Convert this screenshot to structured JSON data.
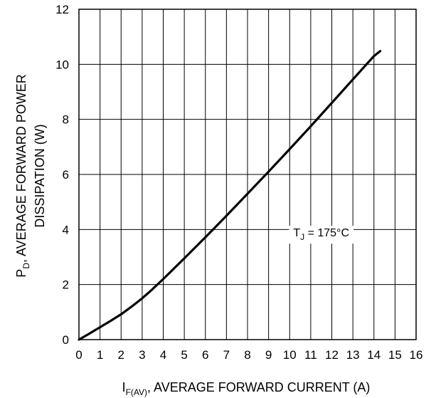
{
  "chart_data": {
    "type": "line",
    "xlabel": {
      "base": "I",
      "sub": "F(AV)",
      "rest": ", AVERAGE FORWARD CURRENT (A)"
    },
    "ylabel": {
      "line1_base": "P",
      "line1_sub": "D",
      "line1_rest": ", AVERAGE FORWARD POWER",
      "line2": "DISSIPATION (W)"
    },
    "xlim": [
      0,
      16
    ],
    "ylim": [
      0,
      12
    ],
    "x_ticks": [
      0,
      1,
      2,
      3,
      4,
      5,
      6,
      7,
      8,
      9,
      10,
      11,
      12,
      13,
      14,
      15,
      16
    ],
    "y_ticks": [
      0,
      2,
      4,
      6,
      8,
      10,
      12
    ],
    "grid": true,
    "series": [
      {
        "x": [
          0,
          0.5,
          1,
          1.5,
          2,
          2.5,
          3,
          3.5,
          4,
          5,
          6,
          7,
          8,
          9,
          10,
          11,
          12,
          13,
          14,
          14.3
        ],
        "y": [
          0,
          0.22,
          0.45,
          0.68,
          0.92,
          1.2,
          1.5,
          1.84,
          2.2,
          2.95,
          3.72,
          4.5,
          5.3,
          6.1,
          6.92,
          7.75,
          8.6,
          9.45,
          10.3,
          10.48
        ]
      }
    ],
    "annotation": {
      "base": "T",
      "sub": "J",
      "rest": " = 175°C",
      "x": 11.5,
      "y": 3.9
    }
  }
}
